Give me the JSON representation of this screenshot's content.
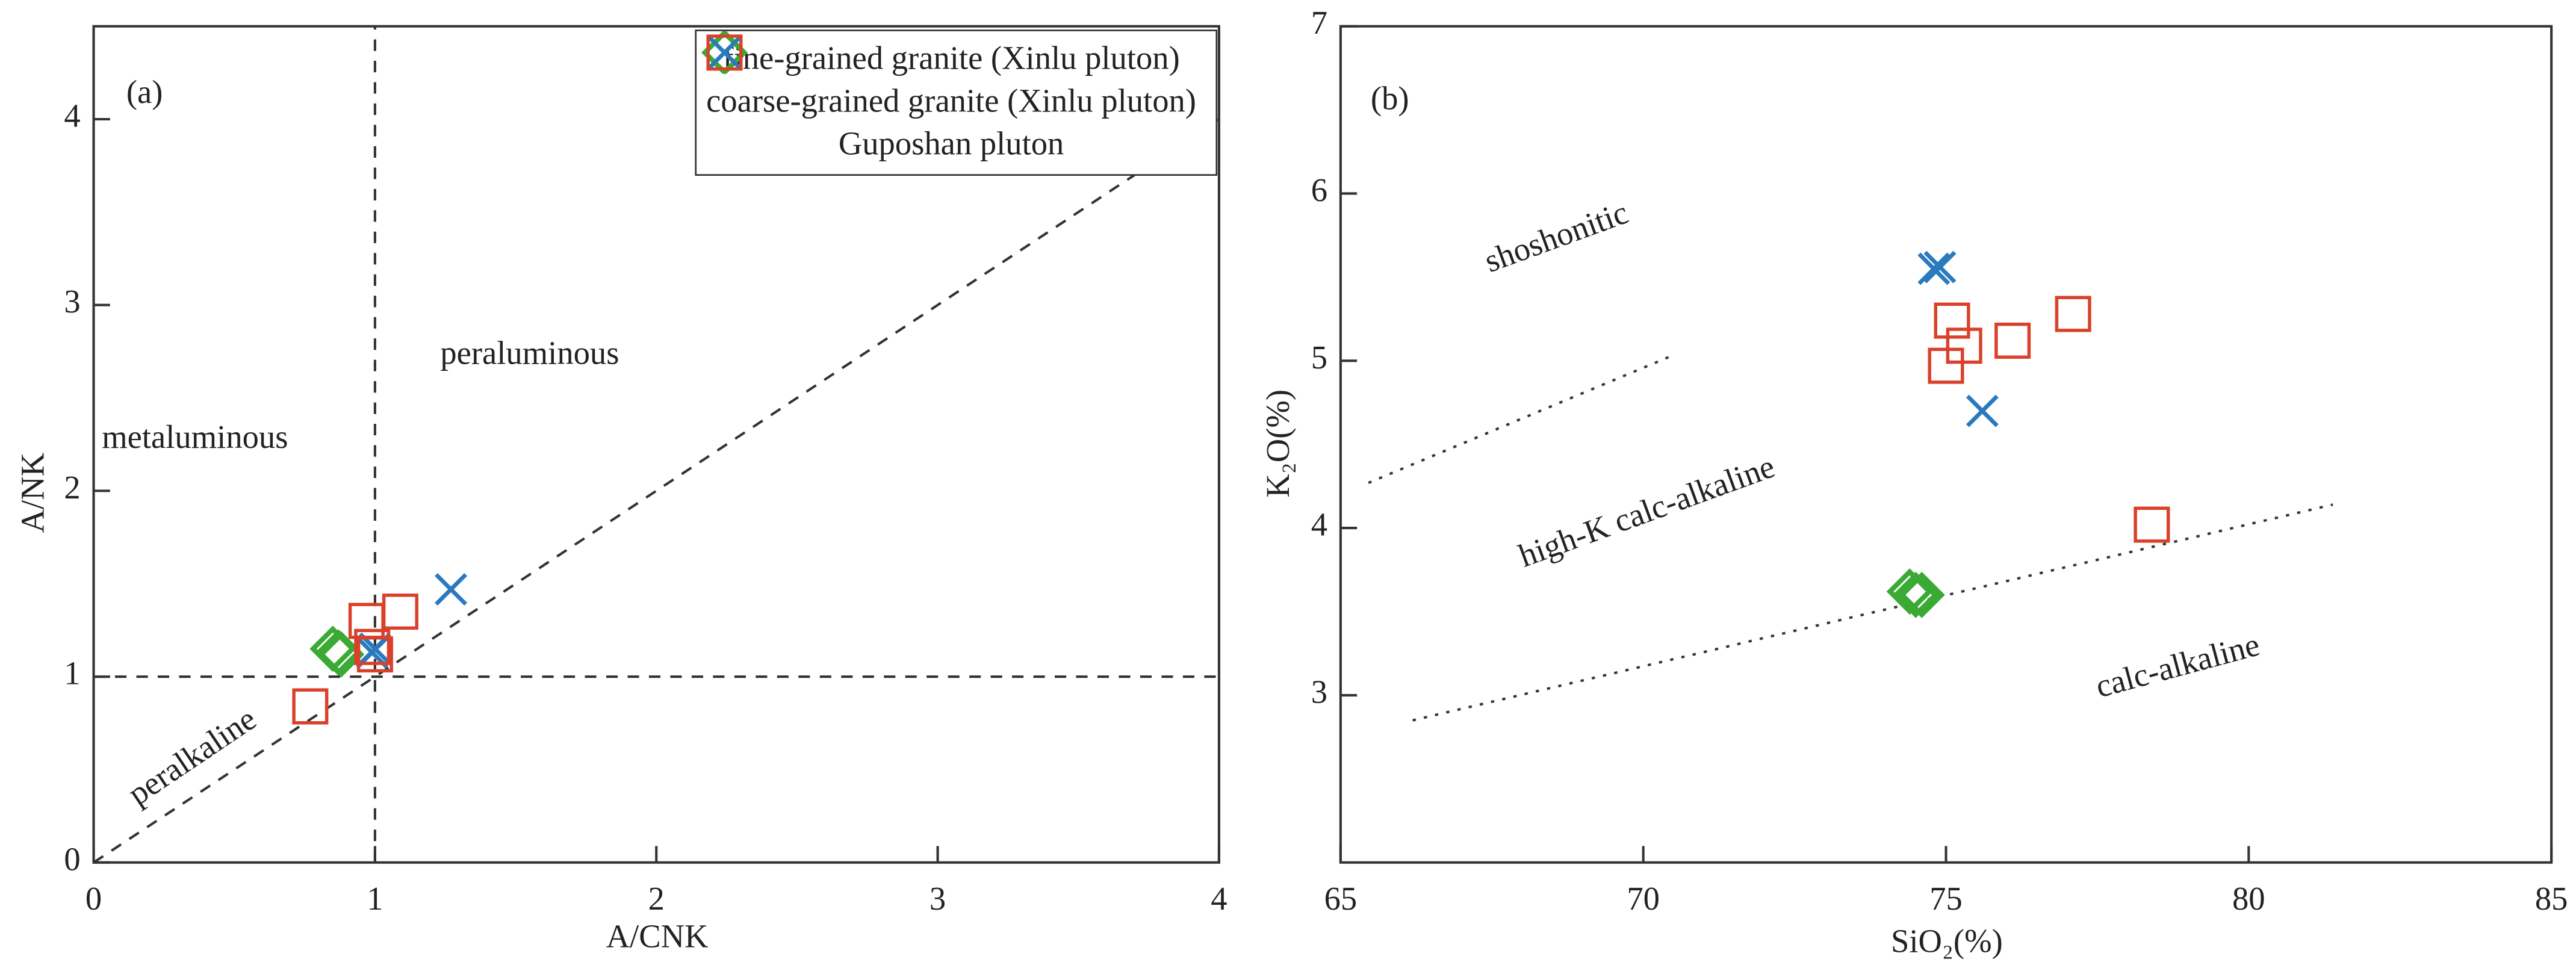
{
  "chart_data": [
    {
      "type": "scatter",
      "title": "(a)",
      "x_label": "A/CNK",
      "y_label": "A/NK",
      "xlim": [
        0,
        4
      ],
      "ylim": [
        0,
        4.5
      ],
      "xticks": [
        0,
        1,
        2,
        3,
        4
      ],
      "yticks": [
        0,
        1,
        2,
        3,
        4
      ],
      "series": [
        {
          "name": "fine-grained granite (Xinlu pluton)",
          "marker": "diamond",
          "color": "#3aaa35",
          "x": [
            0.87,
            0.85,
            0.88
          ],
          "y": [
            1.13,
            1.15,
            1.12
          ]
        },
        {
          "name": "coarse-grained granite (Xinlu pluton)",
          "marker": "x",
          "color": "#2a7abf",
          "x": [
            1.27,
            1.0,
            0.99
          ],
          "y": [
            1.47,
            1.15,
            1.13
          ]
        },
        {
          "name": "Guposhan pluton",
          "marker": "square",
          "color": "#d9412b",
          "x": [
            0.77,
            0.97,
            1.09,
            0.99,
            1.0
          ],
          "y": [
            0.84,
            1.3,
            1.35,
            1.16,
            1.12
          ]
        }
      ],
      "reference_lines": [
        {
          "x": [
            1,
            1
          ],
          "y": [
            0,
            4.5
          ]
        },
        {
          "x": [
            0,
            4
          ],
          "y": [
            1,
            1
          ]
        },
        {
          "x": [
            0,
            4
          ],
          "y": [
            0,
            4
          ]
        }
      ],
      "annotations": [
        "metaluminous",
        "peraluminous",
        "peralkaline"
      ]
    },
    {
      "type": "scatter",
      "title": "(b)",
      "x_label": "SiO₂(%)",
      "y_label": "K₂O(%)",
      "xlim": [
        65,
        85
      ],
      "ylim": [
        2,
        7
      ],
      "xticks": [
        65,
        70,
        75,
        80,
        85
      ],
      "yticks": [
        3,
        4,
        5,
        6,
        7
      ],
      "series": [
        {
          "marker": "x",
          "color": "#2a7abf",
          "x": [
            74.8,
            74.9,
            75.6
          ],
          "y": [
            5.55,
            5.56,
            4.7
          ]
        },
        {
          "marker": "square",
          "color": "#d9412b",
          "x": [
            75.1,
            75.3,
            75.0,
            76.1,
            77.1,
            78.4
          ],
          "y": [
            5.24,
            5.09,
            4.97,
            5.12,
            5.28,
            4.02
          ]
        },
        {
          "marker": "diamond",
          "color": "#3aaa35",
          "x": [
            74.5,
            74.6,
            74.4
          ],
          "y": [
            3.6,
            3.6,
            3.62
          ]
        }
      ],
      "reference_lines": [
        {
          "x": [
            65.46,
            70.54
          ],
          "y": [
            4.27,
            5.04
          ]
        },
        {
          "x": [
            66.19,
            81.39
          ],
          "y": [
            2.85,
            4.14
          ]
        }
      ],
      "annotations": [
        "shoshonitic",
        "high-K calc-alkaline",
        "calc-alkaline"
      ]
    }
  ]
}
